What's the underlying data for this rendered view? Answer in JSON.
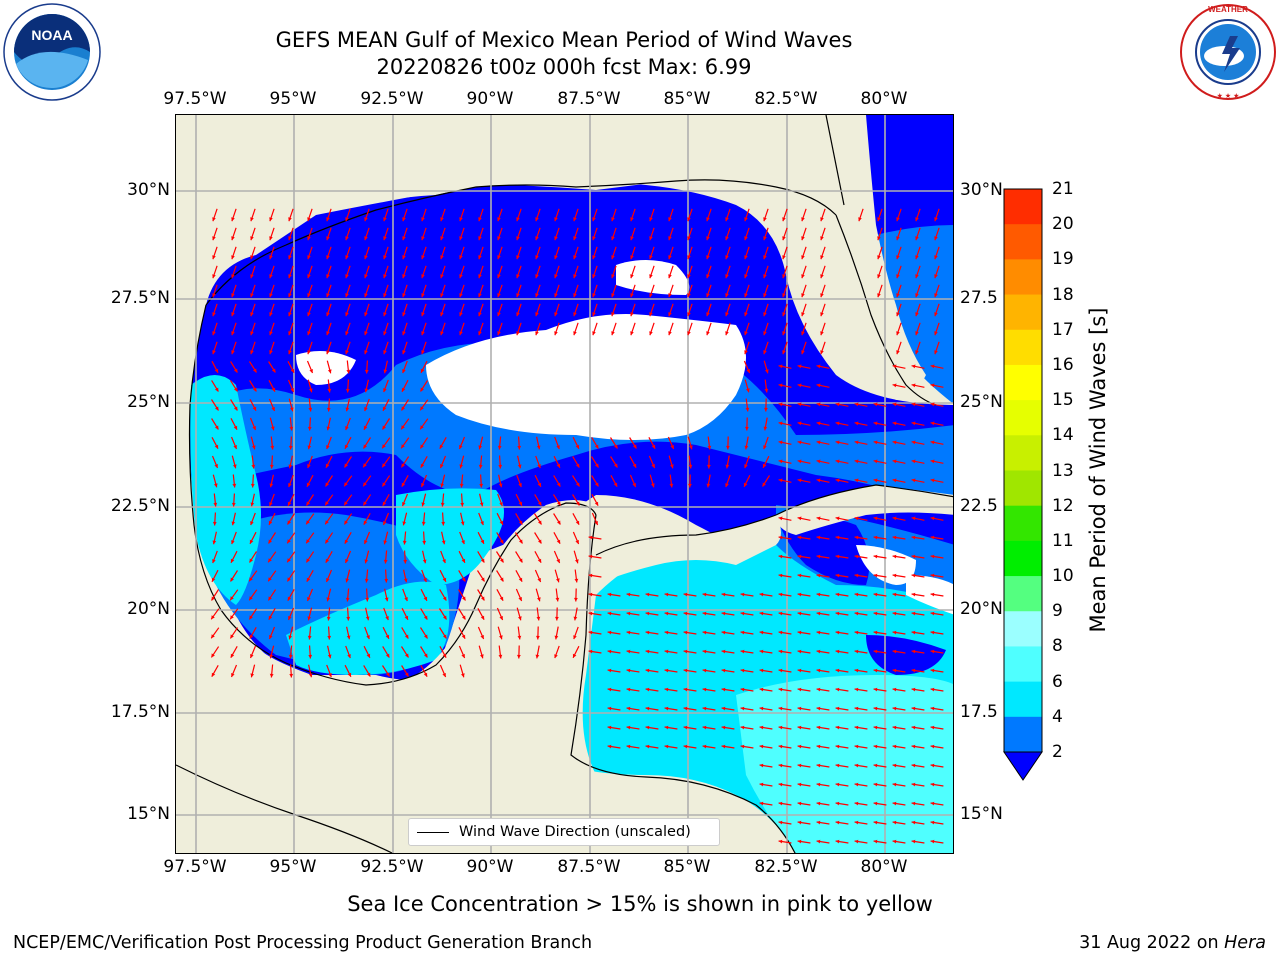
{
  "title": {
    "line1": "GEFS MEAN Gulf of Mexico Mean Period of Wind Waves",
    "line2": "20220826 t00z 000h fcst   Max: 6.99"
  },
  "axes": {
    "lon_ticks": [
      "97.5°W",
      "95°W",
      "92.5°W",
      "90°W",
      "87.5°W",
      "85°W",
      "82.5°W",
      "80°W"
    ],
    "lat_ticks_left": [
      "30°N",
      "27.5°N",
      "25°N",
      "22.5°N",
      "20°N",
      "17.5°N",
      "15°N"
    ],
    "lat_ticks_right": [
      "30°N",
      "27.5",
      "25°N",
      "22.5",
      "20°N",
      "17.5",
      "15°N"
    ]
  },
  "legend": {
    "label": "Wind Wave Direction (unscaled)"
  },
  "colorbar": {
    "label": "Mean Period of Wind Waves [s]",
    "ticks": [
      "21",
      "20",
      "19",
      "18",
      "17",
      "16",
      "15",
      "14",
      "13",
      "12",
      "11",
      "10",
      "9",
      "8",
      "6",
      "4",
      "2"
    ],
    "colors": [
      "#0000ff",
      "#0079ff",
      "#00e8ff",
      "#4fffff",
      "#9bffff",
      "#54ff80",
      "#00ee00",
      "#33e600",
      "#a0e600",
      "#c8f000",
      "#e6ff00",
      "#ffff00",
      "#ffdd00",
      "#ffb400",
      "#ff8c00",
      "#ff5a00",
      "#ff2d00",
      "#ff0000"
    ]
  },
  "footer": {
    "sea_ice": "Sea Ice Concentration > 15% is shown in pink to yellow",
    "left": "NCEP/EMC/Verification Post Processing Product Generation Branch",
    "right_date": "31 Aug 2022 on ",
    "right_host": "Hera"
  },
  "logos": {
    "left_text": "NOAA",
    "right_text": "NATIONAL WEATHER SERVICE"
  },
  "chart_data": {
    "type": "heatmap",
    "title": "GEFS MEAN Gulf of Mexico Mean Period of Wind Waves",
    "subtitle": "20220826 t00z 000h fcst   Max: 6.99",
    "field": "Mean Period of Wind Waves [s]",
    "max": 6.99,
    "colorbar_levels": [
      2,
      4,
      6,
      8,
      9,
      10,
      11,
      12,
      13,
      14,
      15,
      16,
      17,
      18,
      19,
      20,
      21
    ],
    "lon_range": [
      -98.0,
      -78.0
    ],
    "lat_range": [
      14.0,
      31.8
    ],
    "grid": true,
    "overlay": "Wind Wave Direction (unscaled)"
  }
}
